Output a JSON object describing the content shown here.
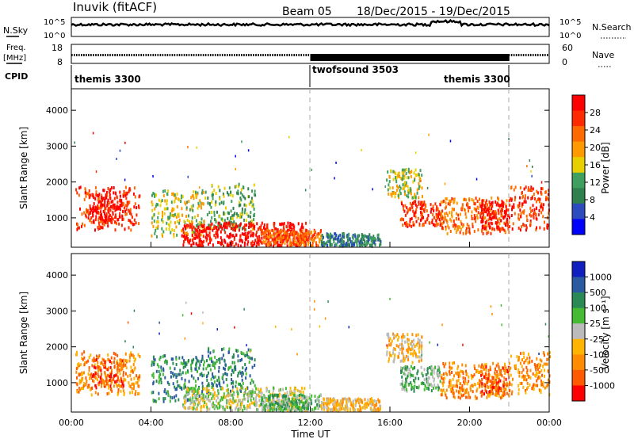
{
  "header": {
    "station": "Inuvik (fitACF)",
    "beam": "Beam 05",
    "date_range": "18/Dec/2015 - 19/Dec/2015"
  },
  "noise_panel": {
    "left_label": "N.Sky",
    "right_label": "N.Search",
    "left_ticks": [
      "10^5",
      "10^0"
    ],
    "right_ticks": [
      "10^5",
      "10^0"
    ]
  },
  "freq_panel": {
    "left_label_1": "Freq.",
    "left_label_2": "[MHz]",
    "right_label": "Nave",
    "left_ticks": [
      "18",
      "8"
    ],
    "right_ticks": [
      "60",
      "0"
    ]
  },
  "cpid": {
    "label": "CPID",
    "segments": [
      {
        "name": "themis 3300",
        "start_h": 0,
        "end_h": 12
      },
      {
        "name": "twofsound 3503",
        "start_h": 12,
        "end_h": 22
      },
      {
        "name": "themis 3300",
        "start_h": 22,
        "end_h": 24
      }
    ]
  },
  "x_axis": {
    "label": "Time UT",
    "ticks": [
      "00:00",
      "04:00",
      "08:00",
      "12:00",
      "16:00",
      "20:00",
      "00:00"
    ],
    "range_h": [
      0,
      24
    ]
  },
  "power_panel": {
    "ylabel": "Slant Range [km]",
    "yticks": [
      "1000",
      "2000",
      "3000",
      "4000"
    ],
    "colorbar_label": "Power [dB]",
    "colorbar_ticks": [
      "28",
      "24",
      "20",
      "16",
      "12",
      "8",
      "4"
    ]
  },
  "velocity_panel": {
    "ylabel": "Slant Range [km]",
    "yticks": [
      "1000",
      "2000",
      "3000",
      "4000"
    ],
    "colorbar_label": "Velocity [m s⁻¹]",
    "colorbar_ticks": [
      "1000",
      "500",
      "100",
      "25",
      "-25",
      "-100",
      "-500",
      "-1000"
    ]
  },
  "colors": {
    "power_scale": [
      "#0000ff",
      "#2b4bbf",
      "#2f7f4f",
      "#3f9f5f",
      "#e8d000",
      "#ff9900",
      "#ff6a00",
      "#ff2a00",
      "#ff0000"
    ],
    "velocity_scale": [
      "#ff0000",
      "#ff5a00",
      "#ff8c00",
      "#ffb400",
      "#bbbbbb",
      "#44bb33",
      "#2a8a55",
      "#2a5aa0",
      "#1020c0"
    ]
  },
  "chart_data": {
    "type": "heatmap",
    "x_range_h": [
      0,
      24
    ],
    "y_range_km": [
      180,
      4600
    ],
    "echo_regions": [
      {
        "t0": 0.2,
        "t1": 3.4,
        "r0": 700,
        "r1": 1900,
        "power_level": 7,
        "vel_level": 2
      },
      {
        "t0": 1.0,
        "t1": 2.6,
        "r0": 900,
        "r1": 1700,
        "power_level": 8,
        "vel_level": 1
      },
      {
        "t0": 4.0,
        "t1": 6.8,
        "r0": 500,
        "r1": 1800,
        "power_level": 4,
        "vel_level": 6
      },
      {
        "t0": 6.8,
        "t1": 9.2,
        "r0": 700,
        "r1": 2000,
        "power_level": 3,
        "vel_level": 6
      },
      {
        "t0": 5.5,
        "t1": 11.8,
        "r0": 250,
        "r1": 900,
        "power_level": 8,
        "vel_level": 4
      },
      {
        "t0": 9.5,
        "t1": 12.5,
        "r0": 250,
        "r1": 700,
        "power_level": 6,
        "vel_level": 5
      },
      {
        "t0": 12.5,
        "t1": 15.5,
        "r0": 250,
        "r1": 600,
        "power_level": 2,
        "vel_level": 3
      },
      {
        "t0": 16.5,
        "t1": 18.5,
        "r0": 800,
        "r1": 1500,
        "power_level": 7,
        "vel_level": 5
      },
      {
        "t0": 18.5,
        "t1": 22.0,
        "r0": 600,
        "r1": 1600,
        "power_level": 6,
        "vel_level": 2
      },
      {
        "t0": 20.5,
        "t1": 22.0,
        "r0": 700,
        "r1": 1500,
        "power_level": 8,
        "vel_level": 1
      },
      {
        "t0": 22.0,
        "t1": 24.0,
        "r0": 700,
        "r1": 1900,
        "power_level": 7,
        "vel_level": 2
      },
      {
        "t0": 15.8,
        "t1": 17.6,
        "r0": 1600,
        "r1": 2400,
        "power_level": 4,
        "vel_level": 3
      }
    ]
  }
}
